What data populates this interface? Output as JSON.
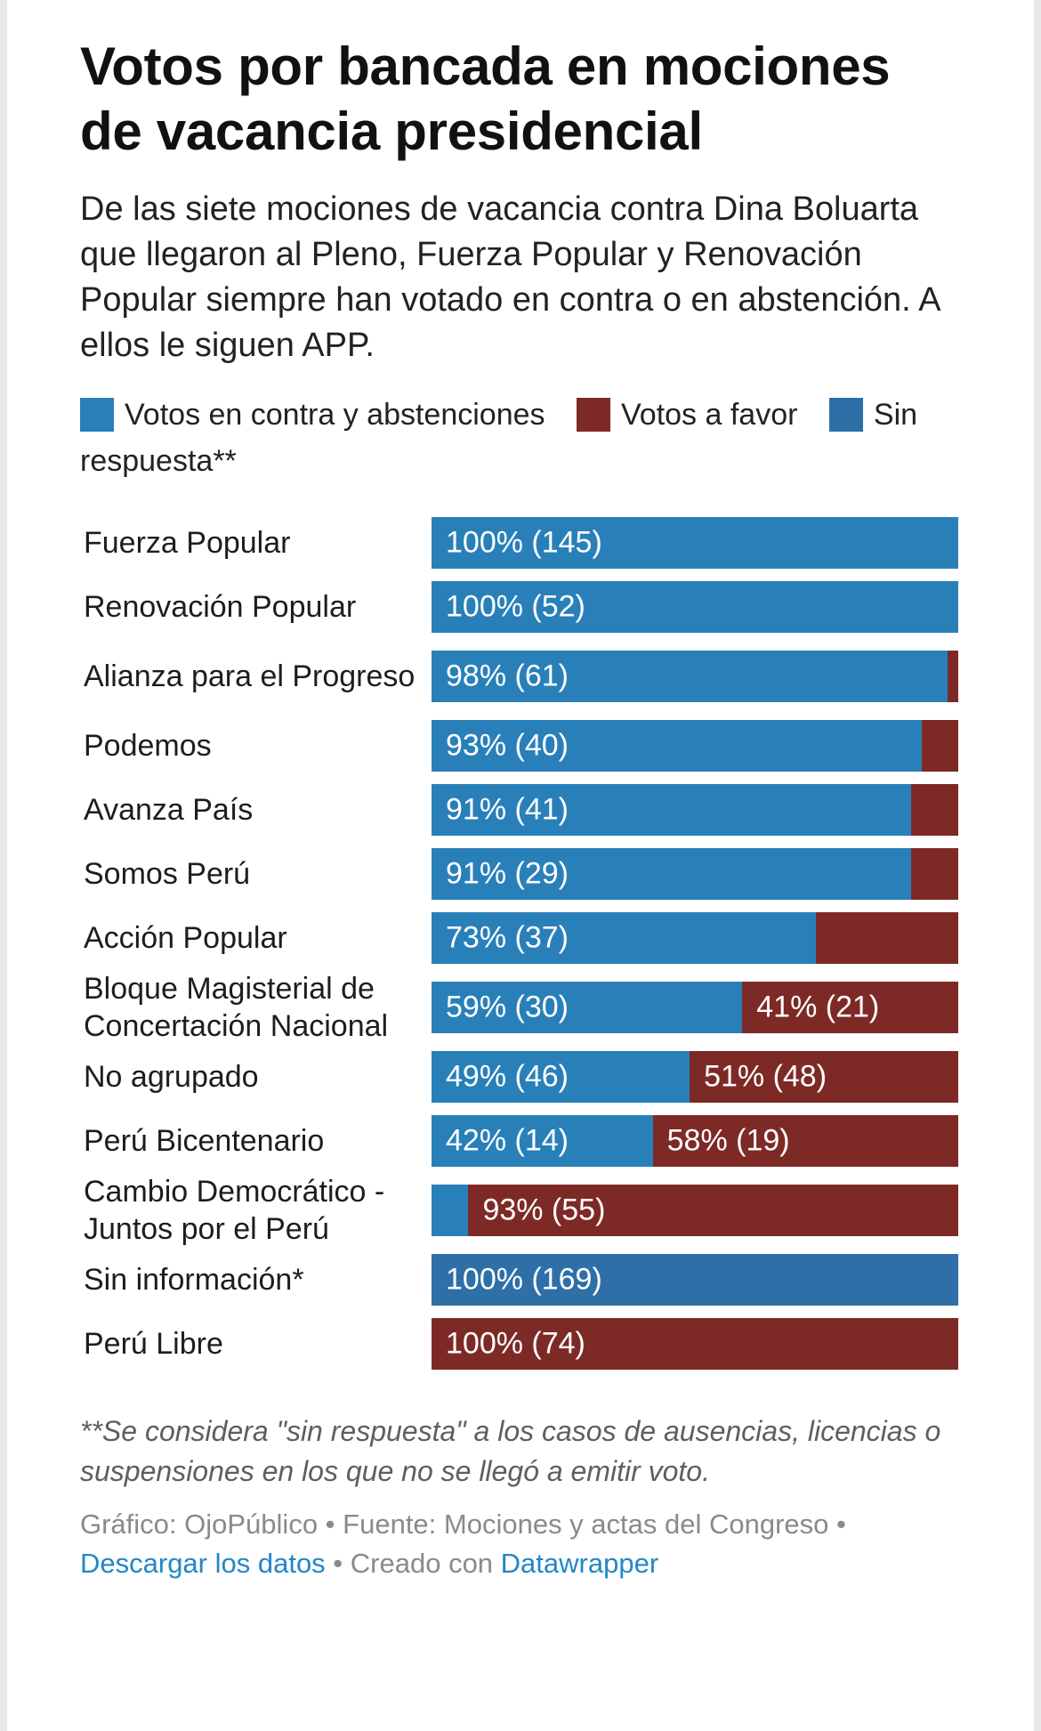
{
  "title": "Votos por bancada en mociones de vacancia presidencial",
  "subtitle": "De las siete mociones de vacancia contra Dina Boluarta que llegaron al Pleno, Fuerza Popular y Renovación Popular siempre han votado en contra o en abstención. A ellos le siguen APP.",
  "colors": {
    "contra": "#2980b9",
    "favor": "#7d2a27",
    "sin_respuesta": "#2e6fa8"
  },
  "legend": [
    {
      "label": "Votos en contra y abstenciones",
      "color": "#2980b9"
    },
    {
      "label": "Votos a favor",
      "color": "#7d2a27"
    },
    {
      "label": "Sin respuesta**",
      "color": "#2e6fa8"
    }
  ],
  "chart_data": {
    "type": "bar",
    "orientation": "horizontal",
    "stacked": true,
    "normalized": true,
    "xlim": [
      0,
      100
    ],
    "series": [
      {
        "name": "Votos en contra y abstenciones",
        "color": "#2980b9"
      },
      {
        "name": "Votos a favor",
        "color": "#7d2a27"
      },
      {
        "name": "Sin respuesta**",
        "color": "#2e6fa8"
      }
    ],
    "rows": [
      {
        "label": "Fuerza Popular",
        "segments": [
          {
            "series": "Votos en contra y abstenciones",
            "value": 100,
            "text": "100% (145)"
          }
        ]
      },
      {
        "label": "Renovación Popular",
        "segments": [
          {
            "series": "Votos en contra y abstenciones",
            "value": 100,
            "text": "100% (52)"
          }
        ]
      },
      {
        "label": "Alianza para el Progreso",
        "segments": [
          {
            "series": "Votos en contra y abstenciones",
            "value": 98,
            "text": "98% (61)"
          },
          {
            "series": "Votos a favor",
            "value": 2,
            "text": ""
          }
        ]
      },
      {
        "label": "Podemos",
        "segments": [
          {
            "series": "Votos en contra y abstenciones",
            "value": 93,
            "text": "93% (40)"
          },
          {
            "series": "Votos a favor",
            "value": 7,
            "text": ""
          }
        ]
      },
      {
        "label": "Avanza País",
        "segments": [
          {
            "series": "Votos en contra y abstenciones",
            "value": 91,
            "text": "91% (41)"
          },
          {
            "series": "Votos a favor",
            "value": 9,
            "text": ""
          }
        ]
      },
      {
        "label": "Somos Perú",
        "segments": [
          {
            "series": "Votos en contra y abstenciones",
            "value": 91,
            "text": "91% (29)"
          },
          {
            "series": "Votos a favor",
            "value": 9,
            "text": ""
          }
        ]
      },
      {
        "label": "Acción Popular",
        "segments": [
          {
            "series": "Votos en contra y abstenciones",
            "value": 73,
            "text": "73% (37)"
          },
          {
            "series": "Votos a favor",
            "value": 27,
            "text": ""
          }
        ]
      },
      {
        "label": "Bloque Magisterial de Concertación Nacional",
        "segments": [
          {
            "series": "Votos en contra y abstenciones",
            "value": 59,
            "text": "59% (30)"
          },
          {
            "series": "Votos a favor",
            "value": 41,
            "text": "41% (21)"
          }
        ]
      },
      {
        "label": "No agrupado",
        "segments": [
          {
            "series": "Votos en contra y abstenciones",
            "value": 49,
            "text": "49% (46)"
          },
          {
            "series": "Votos a favor",
            "value": 51,
            "text": "51% (48)"
          }
        ]
      },
      {
        "label": "Perú Bicentenario",
        "segments": [
          {
            "series": "Votos en contra y abstenciones",
            "value": 42,
            "text": "42% (14)"
          },
          {
            "series": "Votos a favor",
            "value": 58,
            "text": "58% (19)"
          }
        ]
      },
      {
        "label": "Cambio Democrático - Juntos por el Perú",
        "segments": [
          {
            "series": "Votos en contra y abstenciones",
            "value": 7,
            "text": ""
          },
          {
            "series": "Votos a favor",
            "value": 93,
            "text": "93% (55)"
          }
        ]
      },
      {
        "label": "Sin información*",
        "segments": [
          {
            "series": "Sin respuesta**",
            "value": 100,
            "text": "100% (169)"
          }
        ]
      },
      {
        "label": "Perú Libre",
        "segments": [
          {
            "series": "Votos a favor",
            "value": 100,
            "text": "100% (74)"
          }
        ]
      }
    ]
  },
  "note": "**Se considera \"sin respuesta\" a los casos de ausencias, licencias o suspensiones en los que no se llegó a emitir voto.",
  "credits": {
    "graphic": "Gráfico: OjoPúblico",
    "separator": " • ",
    "source": "Fuente: Mociones y actas del Congreso",
    "download": "Descargar los datos",
    "created_prefix": "Creado con ",
    "datawrapper": "Datawrapper"
  }
}
